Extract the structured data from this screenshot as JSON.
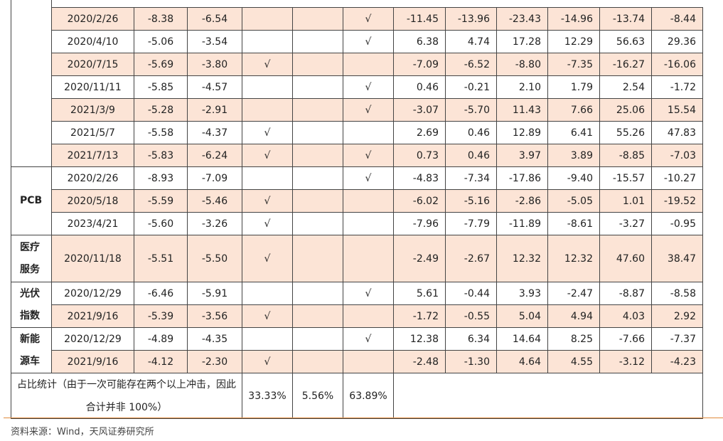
{
  "table": {
    "groups": [
      {
        "rows": [
          [
            "2020/2/26",
            "-8.38",
            "-6.54",
            null,
            null,
            "√",
            "-11.45",
            "-13.96",
            "-23.43",
            "-14.96",
            "-13.74",
            "-8.44"
          ],
          [
            "2020/4/10",
            "-5.06",
            "-3.54",
            null,
            null,
            "√",
            "6.38",
            "4.74",
            "17.28",
            "12.29",
            "56.63",
            "29.36"
          ],
          [
            "2020/7/15",
            "-5.69",
            "-3.80",
            "√",
            null,
            null,
            "-7.09",
            "-6.52",
            "-8.80",
            "-7.35",
            "-16.27",
            "-16.06"
          ],
          [
            "2020/11/11",
            "-5.85",
            "-4.57",
            null,
            null,
            "√",
            "0.46",
            "-0.21",
            "2.10",
            "1.79",
            "2.54",
            "-1.72"
          ],
          [
            "2021/3/9",
            "-5.28",
            "-2.91",
            null,
            null,
            "√",
            "-3.07",
            "-5.70",
            "11.43",
            "7.66",
            "25.06",
            "15.54"
          ],
          [
            "2021/5/7",
            "-5.58",
            "-4.37",
            "√",
            null,
            null,
            "2.69",
            "0.46",
            "12.89",
            "6.41",
            "55.26",
            "47.83"
          ],
          [
            "2021/7/13",
            "-5.83",
            "-6.24",
            "√",
            null,
            "√",
            "0.73",
            "0.46",
            "3.97",
            "3.89",
            "-8.85",
            "-7.03"
          ]
        ]
      },
      {
        "label_lines": [
          "PCB"
        ],
        "rows": [
          [
            "2020/2/26",
            "-8.93",
            "-7.09",
            null,
            null,
            "√",
            "-4.83",
            "-7.34",
            "-17.86",
            "-9.40",
            "-15.57",
            "-10.27"
          ],
          [
            "2020/5/18",
            "-5.59",
            "-5.46",
            "√",
            null,
            null,
            "-6.02",
            "-5.16",
            "-2.86",
            "-5.05",
            "1.01",
            "-19.52"
          ],
          [
            "2023/4/21",
            "-5.60",
            "-3.26",
            "√",
            null,
            null,
            "-7.96",
            "-7.79",
            "-11.89",
            "-8.61",
            "-3.27",
            "-0.95"
          ]
        ]
      },
      {
        "label_lines": [
          "医疗",
          "服务"
        ],
        "tall": true,
        "rows": [
          [
            "2020/11/18",
            "-5.51",
            "-5.50",
            "√",
            null,
            null,
            "-2.49",
            "-2.67",
            "12.32",
            "12.32",
            "47.60",
            "38.47"
          ]
        ]
      },
      {
        "label_lines": [
          "光伏",
          "指数"
        ],
        "rows": [
          [
            "2020/12/29",
            "-6.46",
            "-5.91",
            null,
            null,
            "√",
            "5.61",
            "-0.44",
            "3.93",
            "-2.47",
            "-8.87",
            "-8.58"
          ],
          [
            "2021/9/16",
            "-5.39",
            "-3.56",
            "√",
            null,
            null,
            "-1.72",
            "-0.55",
            "5.04",
            "4.94",
            "4.03",
            "2.92"
          ]
        ]
      },
      {
        "label_lines": [
          "新能",
          "源车"
        ],
        "rows": [
          [
            "2020/12/29",
            "-4.89",
            "-4.35",
            null,
            null,
            "√",
            "12.38",
            "6.34",
            "14.64",
            "8.25",
            "-7.66",
            "-7.37"
          ],
          [
            "2021/9/16",
            "-4.12",
            "-2.30",
            "√",
            null,
            null,
            "-2.48",
            "-1.30",
            "4.64",
            "4.55",
            "-3.12",
            "-4.23"
          ]
        ]
      }
    ],
    "summary": {
      "label_lines": [
        "占比统计（由于一次可能存在两个以上冲击，因此",
        "合计并非 100%）"
      ],
      "values": [
        "33.33%",
        "5.56%",
        "63.89%"
      ]
    }
  },
  "source": "资料来源：Wind，天风证券研究所"
}
